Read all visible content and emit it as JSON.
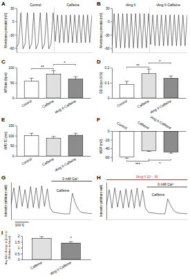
{
  "chart_data": [
    {
      "panel": "A",
      "type": "line",
      "ylabel": "Membrane potential (mV)",
      "annotations": [
        "Control",
        "Caffeine"
      ],
      "x": [
        0,
        1,
        2,
        3,
        4,
        5,
        6,
        7,
        8,
        9,
        10,
        11,
        12,
        13,
        14,
        15,
        16,
        17,
        18,
        19,
        20,
        21,
        22,
        23,
        24,
        25,
        26,
        27,
        28,
        29,
        30,
        31,
        32,
        33,
        34,
        35
      ],
      "values": [
        -58,
        -50,
        20,
        -62,
        -50,
        20,
        -62,
        -50,
        20,
        -62,
        -50,
        20,
        -62,
        -50,
        20,
        -62,
        -50,
        20,
        -45,
        15,
        -48,
        15,
        -48,
        15,
        -48,
        15,
        -48,
        15,
        -48,
        15,
        -48,
        15,
        -48,
        15,
        -48,
        15
      ],
      "color": "#000000",
      "xlim": [
        0,
        35
      ],
      "ylim": [
        -70,
        30
      ],
      "yticks": [
        -60,
        -30,
        0,
        30
      ],
      "tick_labels": "y"
    },
    {
      "panel": "B",
      "type": "line",
      "ylabel": "Membrane potential (mV)",
      "annotations": [
        "iAng II",
        "iAng II-Caffeine"
      ],
      "x": [
        0,
        1,
        2,
        3,
        4,
        5,
        6,
        7,
        8,
        9,
        10,
        11,
        12,
        13,
        14,
        15,
        16,
        17,
        18,
        19,
        20,
        21,
        22,
        23,
        24,
        25,
        26,
        27,
        28,
        29,
        30,
        31,
        32,
        33,
        34,
        35
      ],
      "values": [
        -55,
        18,
        -60,
        18,
        -60,
        18,
        -60,
        18,
        -60,
        18,
        -60,
        18,
        -60,
        18,
        -60,
        18,
        -60,
        18,
        -52,
        15,
        -55,
        15,
        -55,
        15,
        -55,
        15,
        -55,
        15,
        -55,
        15,
        -55,
        15,
        -55,
        15,
        -55,
        15
      ],
      "color": "#000000",
      "xlim": [
        0,
        35
      ],
      "ylim": [
        -70,
        30
      ],
      "yticks": [
        -60,
        -30,
        0,
        30
      ],
      "tick_labels": "y"
    },
    {
      "panel": "C",
      "type": "bar",
      "ylabel": "AP Rate (bpm)",
      "categories": [
        "Control",
        "Caffeine",
        "iAng II-Caffeine"
      ],
      "values": [
        55,
        78,
        62
      ],
      "errors": [
        10,
        12,
        8
      ],
      "colors": [
        "#ffffff",
        "#e0e0e0",
        "#8c8c8c"
      ],
      "ylim": [
        0,
        100
      ],
      "yticks": [
        0,
        50,
        100
      ],
      "brackets": [
        {
          "text": "**",
          "between": [
            0,
            1
          ]
        },
        {
          "text": "*",
          "between": [
            1,
            2
          ]
        }
      ]
    },
    {
      "panel": "D",
      "type": "bar",
      "ylabel": "DD Slope (V/S)",
      "categories": [
        "Control",
        "Caffeine",
        "iAng II-Caffeine"
      ],
      "values": [
        0.09,
        0.16,
        0.13
      ],
      "errors": [
        0.02,
        0.03,
        0.015
      ],
      "colors": [
        "#ffffff",
        "#e0e0e0",
        "#8c8c8c"
      ],
      "ylim": [
        0,
        0.2
      ],
      "yticks": [
        0,
        0.1,
        0.2
      ],
      "brackets": [
        {
          "text": "**",
          "between": [
            0,
            1
          ]
        },
        {
          "text": "*",
          "between": [
            1,
            2
          ]
        }
      ]
    },
    {
      "panel": "E",
      "type": "bar",
      "ylabel": "APD 50 (ms)",
      "categories": [
        "Control",
        "Caffeine",
        "iAng II-Caffeine"
      ],
      "values": [
        100,
        88,
        102
      ],
      "errors": [
        12,
        8,
        10
      ],
      "colors": [
        "#ffffff",
        "#e0e0e0",
        "#8c8c8c"
      ],
      "ylim": [
        0,
        150
      ],
      "yticks": [
        0,
        50,
        100,
        150
      ]
    },
    {
      "panel": "F",
      "type": "bar",
      "ylabel": "MDP (mV)",
      "categories": [
        "Control",
        "Caffeine",
        "iAng II-Caffeine"
      ],
      "values": [
        -60,
        -45,
        -48
      ],
      "errors": [
        3,
        2,
        3
      ],
      "colors": [
        "#ffffff",
        "#e0e0e0",
        "#8c8c8c"
      ],
      "ylim": [
        -70,
        0
      ],
      "yticks": [
        -60,
        -40,
        -20,
        0
      ],
      "brackets": [
        {
          "text": "***",
          "between": [
            0,
            1
          ]
        },
        {
          "text": "*",
          "between": [
            1,
            2
          ]
        }
      ]
    },
    {
      "panel": "G",
      "type": "line",
      "ylabel": "Intensity (arbitrary unit)",
      "annotations": [
        "0 mM Ca²⁺",
        "Caffeine",
        "100 S"
      ],
      "x": [
        0,
        1,
        2,
        3,
        4,
        5,
        6,
        7,
        8,
        9,
        10,
        11,
        12,
        13,
        14,
        15,
        16,
        17,
        18,
        19,
        20,
        21,
        22,
        23,
        24,
        25,
        26,
        27,
        28,
        29
      ],
      "values": [
        40,
        85,
        30,
        90,
        35,
        80,
        30,
        88,
        32,
        85,
        30,
        90,
        35,
        82,
        30,
        20,
        18,
        17,
        16,
        15,
        15,
        15,
        70,
        45,
        28,
        20,
        18,
        17,
        16,
        16
      ],
      "color": "#000000",
      "xlim": [
        0,
        29
      ],
      "ylim": [
        0,
        100
      ],
      "tick_labels": false
    },
    {
      "panel": "H",
      "type": "line",
      "ylabel": "Intensity (arbitrary unit)",
      "annotations": [
        "iAng II 10⁻⁷ M",
        "0 mM Ca²⁺",
        "Caffeine"
      ],
      "x": [
        0,
        1,
        2,
        3,
        4,
        5,
        6,
        7,
        8,
        9,
        10,
        11,
        12,
        13,
        14,
        15,
        16,
        17,
        18,
        19,
        20,
        21,
        22,
        23,
        24,
        25,
        26,
        27,
        28,
        29
      ],
      "values": [
        38,
        80,
        30,
        85,
        33,
        78,
        30,
        82,
        32,
        80,
        30,
        84,
        34,
        78,
        30,
        20,
        18,
        17,
        16,
        15,
        15,
        15,
        55,
        38,
        25,
        19,
        17,
        16,
        16,
        15
      ],
      "color": "#000000",
      "xlim": [
        0,
        29
      ],
      "ylim": [
        0,
        100
      ],
      "tick_labels": false
    },
    {
      "panel": "I",
      "type": "bar",
      "ylabel": [
        "Avg fold change in [Ca2+]i",
        "(Relative to basal)"
      ],
      "categories": [
        "Caffeine",
        "iAng II-Caffeine"
      ],
      "values": [
        1.8,
        1.4
      ],
      "errors": [
        0.15,
        0.12
      ],
      "colors": [
        "#e0e0e0",
        "#8c8c8c"
      ],
      "ylim": [
        0,
        2
      ],
      "yticks": [
        0,
        0.5,
        1,
        1.5,
        2
      ],
      "brackets": [
        {
          "text": "*",
          "between": [
            1,
            1
          ]
        }
      ]
    }
  ]
}
